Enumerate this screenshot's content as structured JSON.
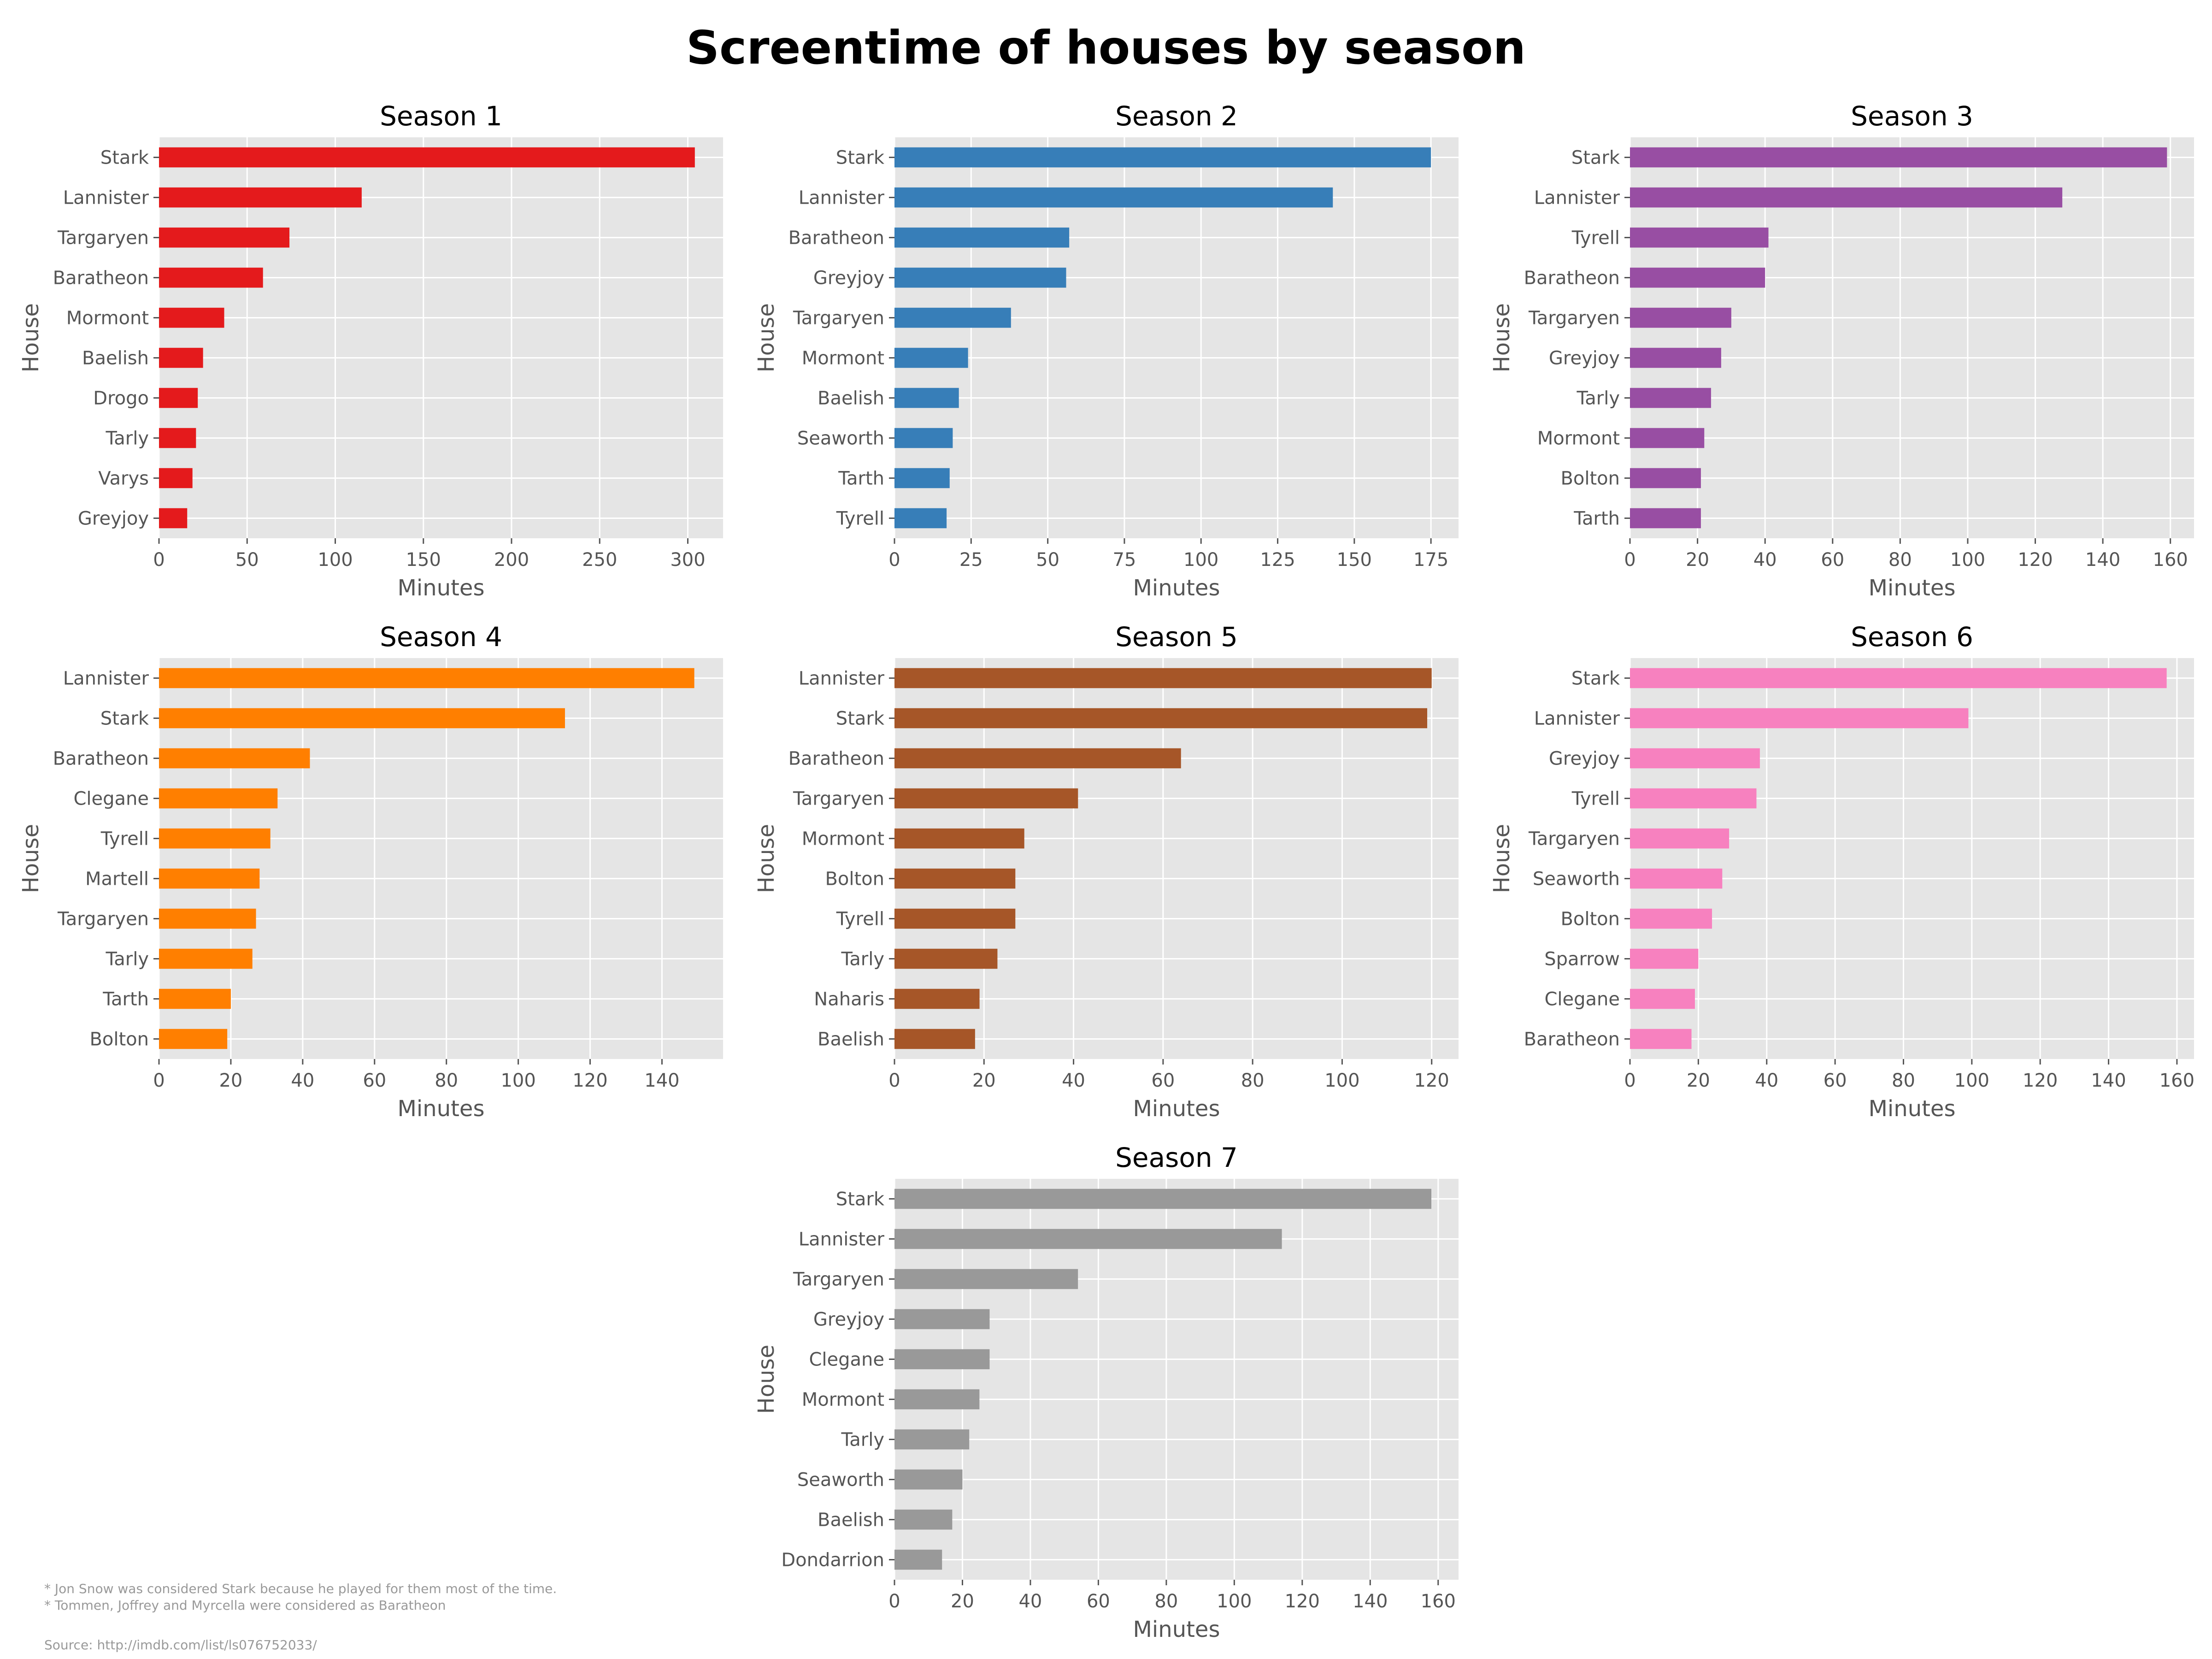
{
  "title": "Screentime of houses by season",
  "notes": [
    "* Jon Snow was considered Stark because he played for them most of the time.",
    "* Tommen, Joffrey and Myrcella were considered as Baratheon"
  ],
  "source": "Source: http://imdb.com/list/ls076752033/",
  "style": {
    "panel_background": "#e5e5e5",
    "grid_color": "#ffffff",
    "tick_color": "#555555"
  },
  "chart_data": [
    {
      "type": "bar",
      "orientation": "horizontal",
      "title": "Season 1",
      "xlabel": "Minutes",
      "ylabel": "House",
      "color": "#e41a1c",
      "categories": [
        "Stark",
        "Lannister",
        "Targaryen",
        "Baratheon",
        "Mormont",
        "Baelish",
        "Drogo",
        "Tarly",
        "Varys",
        "Greyjoy"
      ],
      "values": [
        304,
        115,
        74,
        59,
        37,
        25,
        22,
        21,
        19,
        16
      ],
      "xlim": [
        0,
        320
      ],
      "xticks": [
        0,
        50,
        100,
        150,
        200,
        250,
        300
      ]
    },
    {
      "type": "bar",
      "orientation": "horizontal",
      "title": "Season 2",
      "xlabel": "Minutes",
      "ylabel": "House",
      "color": "#377eb8",
      "categories": [
        "Stark",
        "Lannister",
        "Baratheon",
        "Greyjoy",
        "Targaryen",
        "Mormont",
        "Baelish",
        "Seaworth",
        "Tarth",
        "Tyrell"
      ],
      "values": [
        175,
        143,
        57,
        56,
        38,
        24,
        21,
        19,
        18,
        17
      ],
      "xlim": [
        0,
        184
      ],
      "xticks": [
        0,
        25,
        50,
        75,
        100,
        125,
        150,
        175
      ]
    },
    {
      "type": "bar",
      "orientation": "horizontal",
      "title": "Season 3",
      "xlabel": "Minutes",
      "ylabel": "House",
      "color": "#984ea3",
      "categories": [
        "Stark",
        "Lannister",
        "Tyrell",
        "Baratheon",
        "Targaryen",
        "Greyjoy",
        "Tarly",
        "Mormont",
        "Bolton",
        "Tarth"
      ],
      "values": [
        159,
        128,
        41,
        40,
        30,
        27,
        24,
        22,
        21,
        21
      ],
      "xlim": [
        0,
        167
      ],
      "xticks": [
        0,
        20,
        40,
        60,
        80,
        100,
        120,
        140,
        160
      ]
    },
    {
      "type": "bar",
      "orientation": "horizontal",
      "title": "Season 4",
      "xlabel": "Minutes",
      "ylabel": "House",
      "color": "#ff7f00",
      "categories": [
        "Lannister",
        "Stark",
        "Baratheon",
        "Clegane",
        "Tyrell",
        "Martell",
        "Targaryen",
        "Tarly",
        "Tarth",
        "Bolton"
      ],
      "values": [
        149,
        113,
        42,
        33,
        31,
        28,
        27,
        26,
        20,
        19
      ],
      "xlim": [
        0,
        157
      ],
      "xticks": [
        0,
        20,
        40,
        60,
        80,
        100,
        120,
        140
      ]
    },
    {
      "type": "bar",
      "orientation": "horizontal",
      "title": "Season 5",
      "xlabel": "Minutes",
      "ylabel": "House",
      "color": "#a65628",
      "categories": [
        "Lannister",
        "Stark",
        "Baratheon",
        "Targaryen",
        "Mormont",
        "Bolton",
        "Tyrell",
        "Tarly",
        "Naharis",
        "Baelish"
      ],
      "values": [
        120,
        119,
        64,
        41,
        29,
        27,
        27,
        23,
        19,
        18
      ],
      "xlim": [
        0,
        126
      ],
      "xticks": [
        0,
        20,
        40,
        60,
        80,
        100,
        120
      ]
    },
    {
      "type": "bar",
      "orientation": "horizontal",
      "title": "Season 6",
      "xlabel": "Minutes",
      "ylabel": "House",
      "color": "#f781bf",
      "categories": [
        "Stark",
        "Lannister",
        "Greyjoy",
        "Tyrell",
        "Targaryen",
        "Seaworth",
        "Bolton",
        "Sparrow",
        "Clegane",
        "Baratheon"
      ],
      "values": [
        157,
        99,
        38,
        37,
        29,
        27,
        24,
        20,
        19,
        18
      ],
      "xlim": [
        0,
        165
      ],
      "xticks": [
        0,
        20,
        40,
        60,
        80,
        100,
        120,
        140,
        160
      ]
    },
    {
      "type": "bar",
      "orientation": "horizontal",
      "title": "Season 7",
      "xlabel": "Minutes",
      "ylabel": "House",
      "color": "#999999",
      "categories": [
        "Stark",
        "Lannister",
        "Targaryen",
        "Greyjoy",
        "Clegane",
        "Mormont",
        "Tarly",
        "Seaworth",
        "Baelish",
        "Dondarrion"
      ],
      "values": [
        158,
        114,
        54,
        28,
        28,
        25,
        22,
        20,
        17,
        14
      ],
      "xlim": [
        0,
        166
      ],
      "xticks": [
        0,
        20,
        40,
        60,
        80,
        100,
        120,
        140,
        160
      ]
    }
  ]
}
